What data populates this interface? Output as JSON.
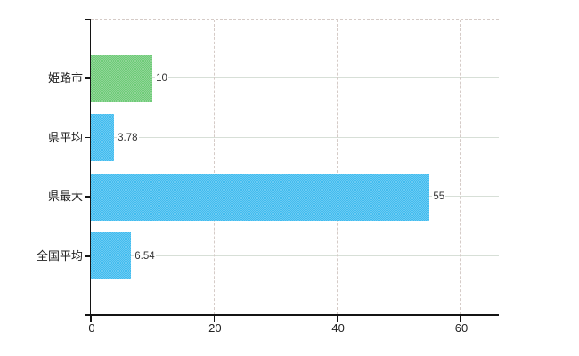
{
  "chart_data": {
    "type": "bar",
    "orientation": "horizontal",
    "title": "",
    "xlabel": "",
    "ylabel": "",
    "categories": [
      "姫路市",
      "県平均",
      "県最大",
      "全国平均"
    ],
    "values": [
      10,
      3.78,
      55,
      6.54
    ],
    "value_labels": [
      "10",
      "3.78",
      "55",
      "6.54"
    ],
    "bar_colors": [
      "#6fcb78",
      "#41bcef",
      "#41bcef",
      "#41bcef"
    ],
    "x_ticks": [
      0,
      20,
      40,
      60
    ],
    "x_tick_labels": [
      "0",
      "20",
      "40",
      "60"
    ],
    "xlim": [
      0,
      66.2
    ],
    "legend_position": "none",
    "grid": {
      "horizontal_style": "solid",
      "vertical_style": "dashed",
      "top_boundary_style": "dashed"
    }
  },
  "colors": {
    "background": "#ffffff",
    "bar_green": "#6fcb78",
    "bar_blue": "#41bcef",
    "horizontal_gridline": "#d7dfd7",
    "dashed_gridline": "#d5cbc7",
    "axis": "#141414",
    "text": "#222222",
    "value_text": "#333333"
  }
}
